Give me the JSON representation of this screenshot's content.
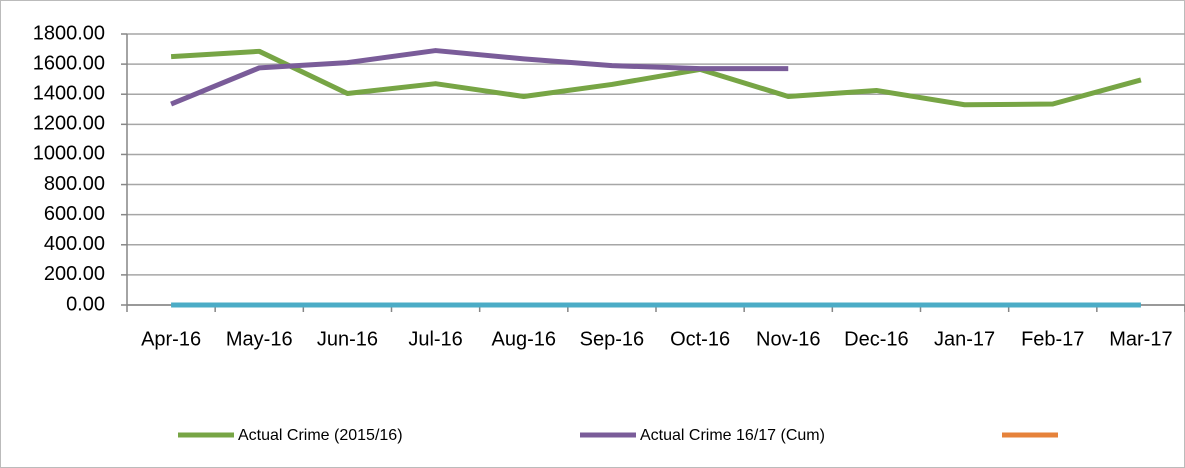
{
  "chart_data": {
    "type": "line",
    "categories": [
      "Apr-16",
      "May-16",
      "Jun-16",
      "Jul-16",
      "Aug-16",
      "Sep-16",
      "Oct-16",
      "Nov-16",
      "Dec-16",
      "Jan-17",
      "Feb-17",
      "Mar-17"
    ],
    "series": [
      {
        "name": "Actual Crime  (2015/16)",
        "color": "#77a545",
        "values": [
          1650,
          1685,
          1405,
          1470,
          1385,
          1465,
          1565,
          1385,
          1425,
          1330,
          1335,
          1495
        ]
      },
      {
        "name": "Actual Crime 16/17 (Cum)",
        "color": "#7a5c99",
        "values": [
          1335,
          1575,
          1610,
          1690,
          1635,
          1590,
          1570,
          1570,
          null,
          null,
          null,
          null
        ]
      },
      {
        "color": "#e6823a",
        "values": [
          null,
          null,
          null,
          null,
          null,
          null,
          null,
          null,
          null,
          null,
          null,
          null
        ]
      },
      {
        "color": "#4bacc6",
        "values": [
          0,
          0,
          0,
          0,
          0,
          0,
          0,
          0,
          0,
          0,
          0,
          0
        ]
      }
    ],
    "ylim": [
      0,
      1800
    ],
    "yticks": [
      {
        "value": 0,
        "label": "0.00"
      },
      {
        "value": 200,
        "label": "200.00"
      },
      {
        "value": 400,
        "label": "400.00"
      },
      {
        "value": 600,
        "label": "600.00"
      },
      {
        "value": 800,
        "label": "800.00"
      },
      {
        "value": 1000,
        "label": "1000.00"
      },
      {
        "value": 1200,
        "label": "1200.00"
      },
      {
        "value": 1400,
        "label": "1400.00"
      },
      {
        "value": 1600,
        "label": "1600.00"
      },
      {
        "value": 1800,
        "label": "1800.00"
      }
    ],
    "grid": true
  }
}
